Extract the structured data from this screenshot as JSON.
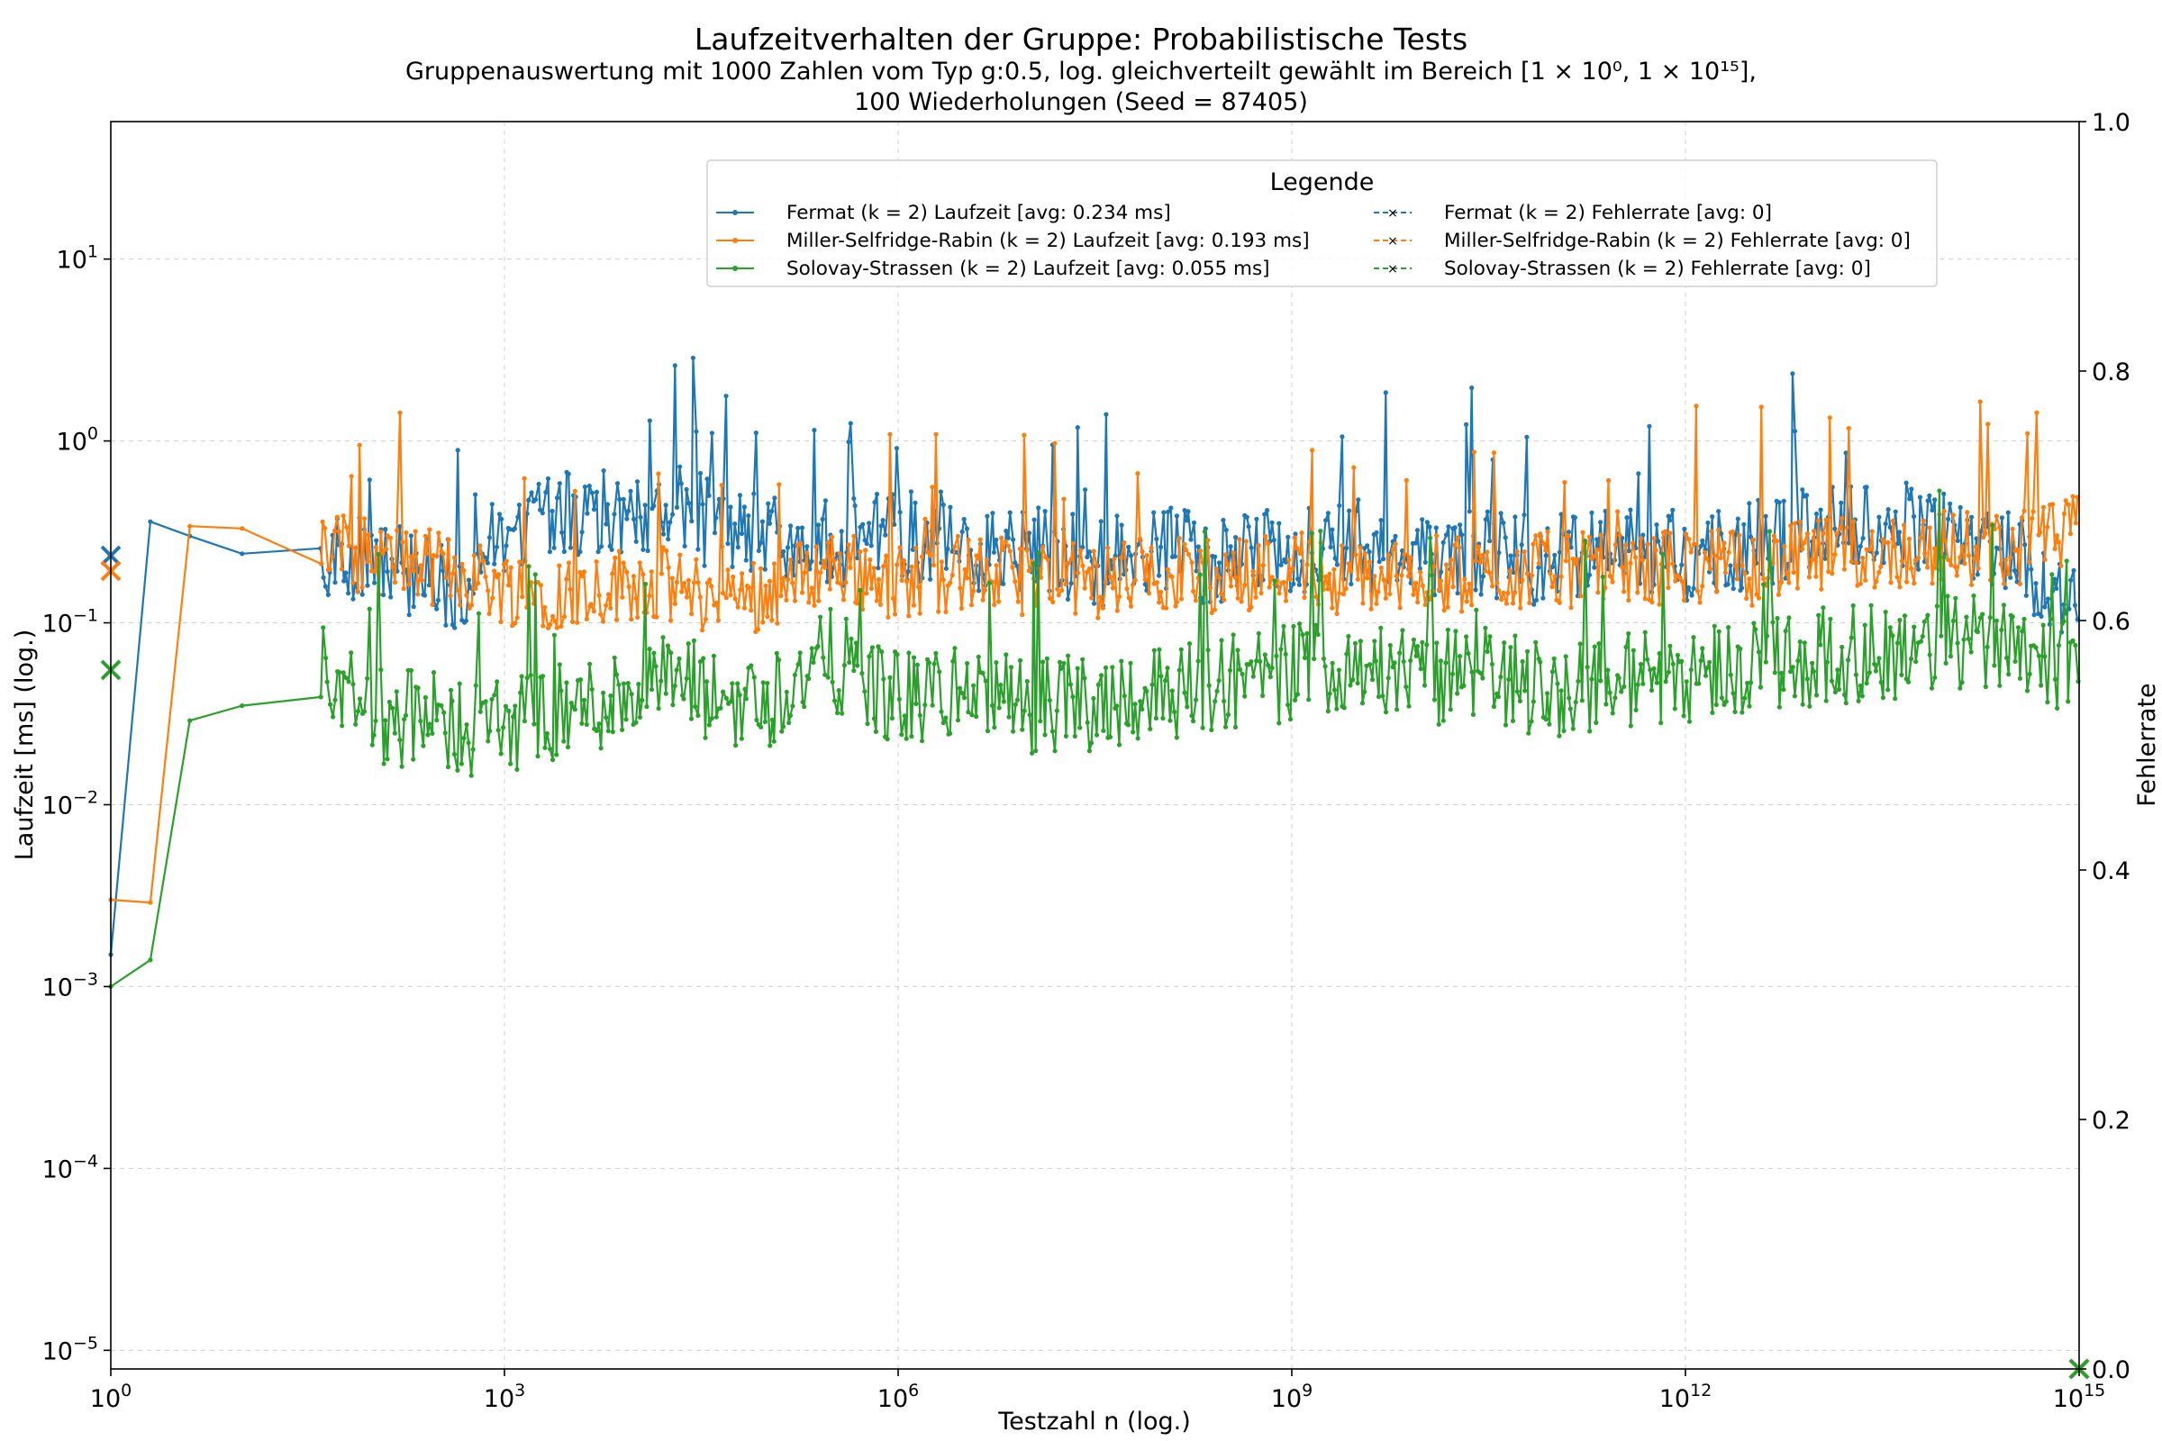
{
  "chart_data": {
    "type": "line",
    "title": "Laufzeitverhalten der Gruppe: Probabilistische Tests",
    "subtitle_line1": "Gruppenauswertung mit 1000 Zahlen vom Typ g:0.5, log. gleichverteilt gewählt im Bereich [1 × 10⁰, 1 × 10¹⁵],",
    "subtitle_line2": "100 Wiederholungen (Seed = 87405)",
    "xlabel": "Testzahl n (log.)",
    "ylabel": "Laufzeit [ms] (log.)",
    "y2label": "Fehlerrate",
    "xscale": "log",
    "yscale": "log",
    "xlim": [
      1,
      1000000000000000.0
    ],
    "ylim": [
      7.9e-06,
      57
    ],
    "y2lim": [
      0.0,
      1.0
    ],
    "xticks": [
      {
        "exp": "0",
        "value": 1
      },
      {
        "exp": "3",
        "value": 1000
      },
      {
        "exp": "6",
        "value": 1000000
      },
      {
        "exp": "9",
        "value": 1000000000
      },
      {
        "exp": "12",
        "value": 1000000000000
      },
      {
        "exp": "15",
        "value": 1000000000000000
      }
    ],
    "yticks": [
      {
        "exp": "−5",
        "value": 1e-05
      },
      {
        "exp": "−4",
        "value": 0.0001
      },
      {
        "exp": "−3",
        "value": 0.001
      },
      {
        "exp": "−2",
        "value": 0.01
      },
      {
        "exp": "−1",
        "value": 0.1
      },
      {
        "exp": "0",
        "value": 1
      },
      {
        "exp": "1",
        "value": 10
      }
    ],
    "y2ticks": [
      "0.0",
      "0.2",
      "0.4",
      "0.6",
      "0.8",
      "1.0"
    ],
    "tick_base": "10",
    "grid": true,
    "legend": {
      "title": "Legende",
      "placement": "top-center"
    },
    "series": [
      {
        "name": "Fermat (k = 2) Laufzeit [avg: 0.234 ms]",
        "axis": "left",
        "style": "solid-dot",
        "color": "#1f77b4",
        "avg": 0.234,
        "x": [
          1,
          2,
          4,
          10,
          20,
          40,
          100,
          200,
          500,
          1000,
          3000,
          10000,
          20000,
          40000,
          100000,
          300000,
          1000000,
          3000000,
          10000000,
          30000000,
          100000000,
          300000000,
          1000000000,
          3000000000,
          10000000000,
          30000000000,
          100000000000,
          300000000000,
          1000000000000,
          3000000000000,
          10000000000000,
          30000000000000,
          100000000000000,
          300000000000000,
          1000000000000000
        ],
        "values": [
          0.0015,
          0.36,
          0.3,
          0.24,
          0.23,
          0.22,
          0.2,
          0.18,
          0.15,
          0.3,
          0.4,
          0.35,
          0.5,
          0.3,
          0.28,
          0.25,
          0.3,
          0.22,
          0.25,
          0.2,
          0.25,
          0.2,
          0.24,
          0.26,
          0.22,
          0.23,
          0.2,
          0.24,
          0.22,
          0.25,
          0.3,
          0.35,
          0.3,
          0.25,
          0.1
        ]
      },
      {
        "name": "Miller-Selfridge-Rabin (k = 2) Laufzeit [avg: 0.193 ms]",
        "axis": "left",
        "style": "solid-dot",
        "color": "#ff7f0e",
        "avg": 0.193,
        "x": [
          1,
          2,
          4,
          10,
          20,
          40,
          100,
          200,
          500,
          1000,
          3000,
          10000,
          20000,
          40000,
          100000,
          300000,
          1000000,
          3000000,
          10000000,
          30000000,
          100000000,
          300000000,
          1000000000,
          3000000000,
          10000000000,
          30000000000,
          100000000000,
          300000000000,
          1000000000000,
          3000000000000,
          10000000000000,
          30000000000000,
          100000000000000,
          300000000000000,
          1000000000000000
        ],
        "values": [
          0.003,
          0.0029,
          0.34,
          0.33,
          0.45,
          0.25,
          0.22,
          0.2,
          0.18,
          0.15,
          0.14,
          0.16,
          0.15,
          0.13,
          0.14,
          0.2,
          0.16,
          0.18,
          0.17,
          0.16,
          0.18,
          0.17,
          0.2,
          0.16,
          0.18,
          0.17,
          0.19,
          0.18,
          0.2,
          0.19,
          0.22,
          0.23,
          0.25,
          0.24,
          0.3
        ]
      },
      {
        "name": "Solovay-Strassen (k = 2) Laufzeit [avg: 0.055 ms]",
        "axis": "left",
        "style": "solid-dot",
        "color": "#2ca02c",
        "avg": 0.055,
        "x": [
          1,
          2,
          4,
          10,
          20,
          40,
          100,
          200,
          500,
          1000,
          3000,
          10000,
          20000,
          40000,
          100000,
          300000,
          1000000,
          3000000,
          10000000,
          30000000,
          100000000,
          300000000,
          1000000000,
          3000000000,
          10000000000,
          30000000000,
          100000000000,
          300000000000,
          1000000000000,
          3000000000000,
          10000000000000,
          30000000000000,
          100000000000000,
          300000000000000,
          1000000000000000
        ],
        "values": [
          0.001,
          0.0014,
          0.029,
          0.035,
          0.034,
          0.05,
          0.03,
          0.028,
          0.025,
          0.026,
          0.03,
          0.04,
          0.045,
          0.035,
          0.035,
          0.06,
          0.035,
          0.04,
          0.032,
          0.035,
          0.04,
          0.045,
          0.05,
          0.06,
          0.045,
          0.05,
          0.04,
          0.045,
          0.05,
          0.055,
          0.06,
          0.065,
          0.07,
          0.08,
          0.05
        ]
      },
      {
        "name": "Fermat (k = 2) Fehlerrate [avg: 0]",
        "axis": "right",
        "style": "dashed-x",
        "color": "#1f77b4",
        "values": [
          0
        ]
      },
      {
        "name": "Miller-Selfridge-Rabin (k = 2) Fehlerrate [avg: 0]",
        "axis": "right",
        "style": "dashed-x",
        "color": "#ff7f0e",
        "values": [
          0
        ]
      },
      {
        "name": "Solovay-Strassen (k = 2) Fehlerrate [avg: 0]",
        "axis": "right",
        "style": "dashed-x",
        "color": "#2ca02c",
        "values": [
          0
        ]
      }
    ]
  }
}
